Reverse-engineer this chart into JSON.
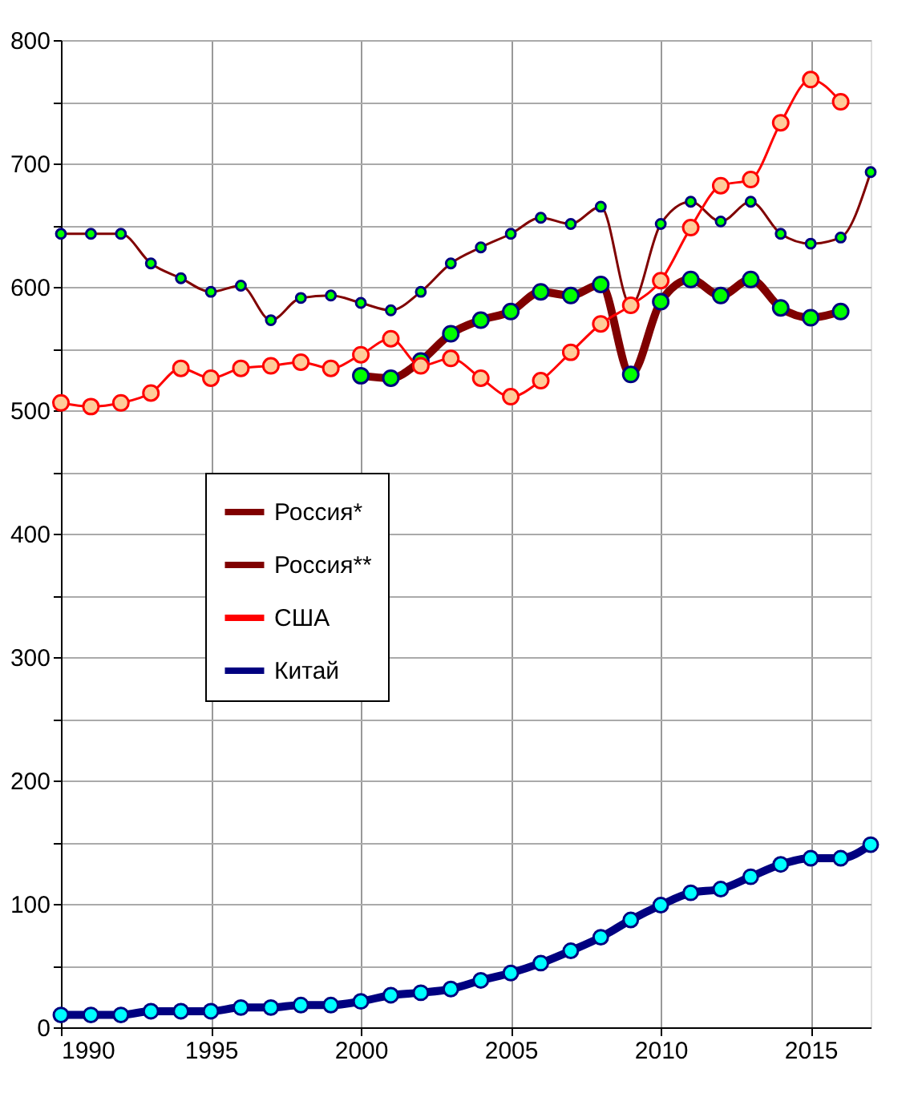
{
  "chart_data": {
    "type": "line",
    "x": [
      1990,
      1991,
      1992,
      1993,
      1994,
      1995,
      1996,
      1997,
      1998,
      1999,
      2000,
      2001,
      2002,
      2003,
      2004,
      2005,
      2006,
      2007,
      2008,
      2009,
      2010,
      2011,
      2012,
      2013,
      2014,
      2015,
      2016,
      2017
    ],
    "series": [
      {
        "name": "Россия*",
        "color": "#800000",
        "values": [
          643,
          643,
          643,
          619,
          607,
          596,
          601,
          573,
          591,
          593,
          587,
          581,
          596,
          619,
          632,
          643,
          656,
          651,
          665,
          585,
          651,
          669,
          653,
          669,
          643,
          635,
          640,
          693
        ]
      },
      {
        "name": "Россия**",
        "color": "#800000",
        "values": [
          null,
          null,
          null,
          null,
          null,
          null,
          null,
          null,
          null,
          null,
          528,
          526,
          540,
          562,
          573,
          580,
          596,
          593,
          602,
          529,
          588,
          606,
          593,
          606,
          583,
          575,
          580,
          null
        ]
      },
      {
        "name": "США",
        "color": "#ff0000",
        "values": [
          506,
          503,
          506,
          514,
          534,
          526,
          534,
          536,
          539,
          534,
          545,
          558,
          536,
          542,
          526,
          511,
          524,
          547,
          570,
          585,
          605,
          648,
          682,
          687,
          733,
          768,
          750,
          null
        ]
      },
      {
        "name": "Китай",
        "color": "#000080",
        "values": [
          10,
          10,
          10,
          13,
          13,
          13,
          16,
          16,
          18,
          18,
          21,
          26,
          28,
          31,
          38,
          44,
          52,
          62,
          73,
          87,
          99,
          109,
          112,
          122,
          132,
          137,
          137,
          148
        ]
      }
    ],
    "xlim": [
      1990,
      2017
    ],
    "xticks": [
      1990,
      1995,
      2000,
      2005,
      2010,
      2015
    ],
    "ylim": [
      0,
      800
    ],
    "yticks": [
      0,
      {
        "value": 50,
        "label": null
      },
      100,
      {
        "value": 150,
        "label": null
      },
      200,
      {
        "value": 250,
        "label": null
      },
      300,
      {
        "value": 350,
        "label": null
      },
      400,
      {
        "value": 450,
        "label": null
      },
      500,
      {
        "value": 550,
        "label": null
      },
      600,
      {
        "value": 650,
        "label": null
      },
      700,
      {
        "value": 750,
        "label": null
      },
      800
    ],
    "grid": true,
    "legend": "left",
    "marker": "circle",
    "line_style": "solid"
  }
}
